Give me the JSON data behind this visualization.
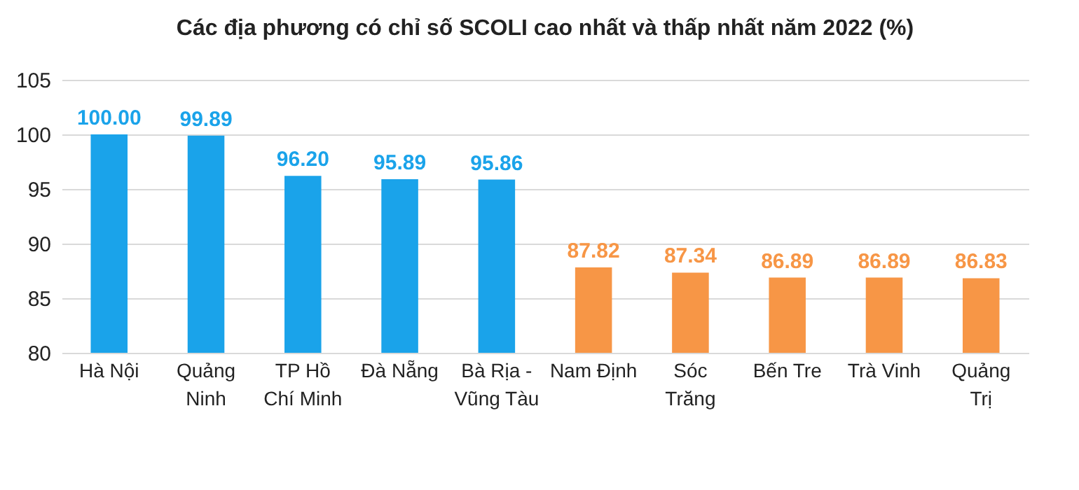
{
  "chart_data": {
    "type": "bar",
    "title": "Các địa phương có chỉ số SCOLI cao nhất và thấp nhất năm 2022 (%)",
    "categories": [
      "Hà Nội",
      "Quảng Ninh",
      "TP Hồ Chí Minh",
      "Đà Nẵng",
      "Bà Rịa - Vũng Tàu",
      "Nam Định",
      "Sóc Trăng",
      "Bến Tre",
      "Trà Vinh",
      "Quảng Trị"
    ],
    "values": [
      100.0,
      99.89,
      96.2,
      95.89,
      95.86,
      87.82,
      87.34,
      86.89,
      86.89,
      86.83
    ],
    "value_labels": [
      "100.00",
      "99.89",
      "96.20",
      "95.89",
      "95.86",
      "87.82",
      "87.34",
      "86.89",
      "86.89",
      "86.83"
    ],
    "colors": [
      "#1aa3ea",
      "#1aa3ea",
      "#1aa3ea",
      "#1aa3ea",
      "#1aa3ea",
      "#f79646",
      "#f79646",
      "#f79646",
      "#f79646",
      "#f79646"
    ],
    "ylim": [
      80,
      105
    ],
    "yticks": [
      80,
      85,
      90,
      95,
      100,
      105
    ],
    "grid": "y"
  }
}
